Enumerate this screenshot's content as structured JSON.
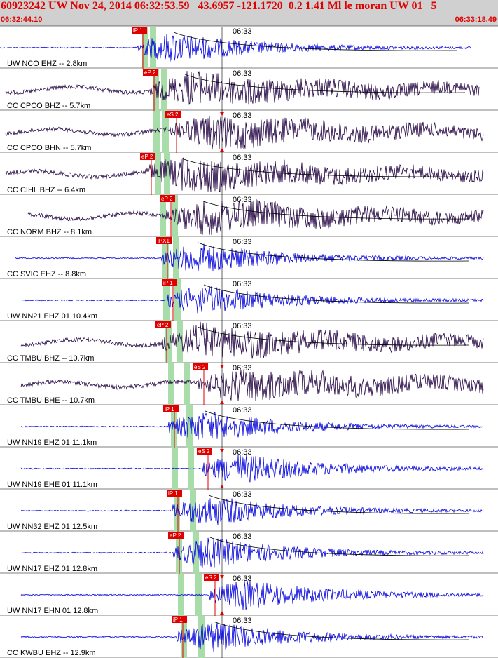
{
  "header": {
    "title": "60923242 UW Nov 24, 2014 06:32:53.59   43.6957 -121.1720  0.2 1.41 Ml le moran UW 01   5",
    "start_time": "06:32:44.10",
    "end_time": "06:33:18.49"
  },
  "time_mark": "06:33",
  "colors": {
    "header_bg": "#d0d0d0",
    "title": "#e00000",
    "pick": "#e00000",
    "green_band": "#a8dca8",
    "blue_trace": "#0000dd",
    "dark_trace": "#200040"
  },
  "traces": [
    {
      "label": "UW NCO EHZ -- 2.8km",
      "pick": "iP 1",
      "color": "blue"
    },
    {
      "label": "CC CPCO BHZ -- 5.7km",
      "pick": "eP 2",
      "color": "dark"
    },
    {
      "label": "CC CPCO BHN -- 5.7km",
      "pick": "eS 2",
      "color": "dark"
    },
    {
      "label": "CC CIHL BHZ -- 6.4km",
      "pick": "eP 2",
      "color": "dark"
    },
    {
      "label": "CC NORM BHZ -- 8.1km",
      "pick": "eP 2",
      "color": "dark"
    },
    {
      "label": "CC SVIC EHZ -- 8.8km",
      "pick": "iPX1",
      "color": "blue"
    },
    {
      "label": "UW NN21 EHZ 01 10.4km",
      "pick": "iP 1",
      "color": "blue"
    },
    {
      "label": "CC TMBU BHZ -- 10.7km",
      "pick": "eP 2",
      "color": "dark"
    },
    {
      "label": "CC TMBU BHE -- 10.7km",
      "pick": "eS 2",
      "color": "dark"
    },
    {
      "label": "UW NN19 EHZ 01 11.1km",
      "pick": "iP 1",
      "color": "blue"
    },
    {
      "label": "UW NN19 EHE 01 11.1km",
      "pick": "eS 2",
      "color": "blue"
    },
    {
      "label": "UW NN32 EHZ 01 12.5km",
      "pick": "iP 1",
      "color": "blue"
    },
    {
      "label": "UW NN17 EHZ 01 12.8km",
      "pick": "eP 2",
      "color": "blue"
    },
    {
      "label": "UW NN17 EHN 01 12.8km",
      "pick": "eS 2",
      "color": "blue"
    },
    {
      "label": "CC KWBU EHZ -- 12.9km",
      "pick": "iP 1",
      "color": "blue"
    }
  ]
}
